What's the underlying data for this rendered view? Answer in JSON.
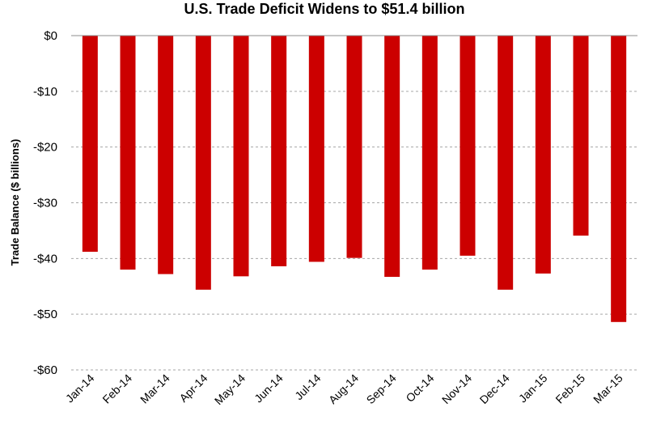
{
  "chart_data": {
    "type": "bar",
    "title": "U.S. Trade Deficit Widens to $51.4 billion",
    "xlabel": "",
    "ylabel": "Trade Balance ($ billions)",
    "ylim": [
      -60,
      0
    ],
    "yticks": [
      0,
      -10,
      -20,
      -30,
      -40,
      -50,
      -60
    ],
    "ytick_labels": [
      "$0",
      "-$10",
      "-$20",
      "-$30",
      "-$40",
      "-$50",
      "-$60"
    ],
    "grid": true,
    "legend": "none",
    "bar_color": "#cc0000",
    "categories": [
      "Jan-14",
      "Feb-14",
      "Mar-14",
      "Apr-14",
      "May-14",
      "Jun-14",
      "Jul-14",
      "Aug-14",
      "Sep-14",
      "Oct-14",
      "Nov-14",
      "Dec-14",
      "Jan-15",
      "Feb-15",
      "Mar-15"
    ],
    "values": [
      -38.8,
      -42.0,
      -42.8,
      -45.6,
      -43.2,
      -41.4,
      -40.6,
      -39.9,
      -43.3,
      -42.0,
      -39.5,
      -45.6,
      -42.7,
      -35.9,
      -51.4
    ]
  }
}
